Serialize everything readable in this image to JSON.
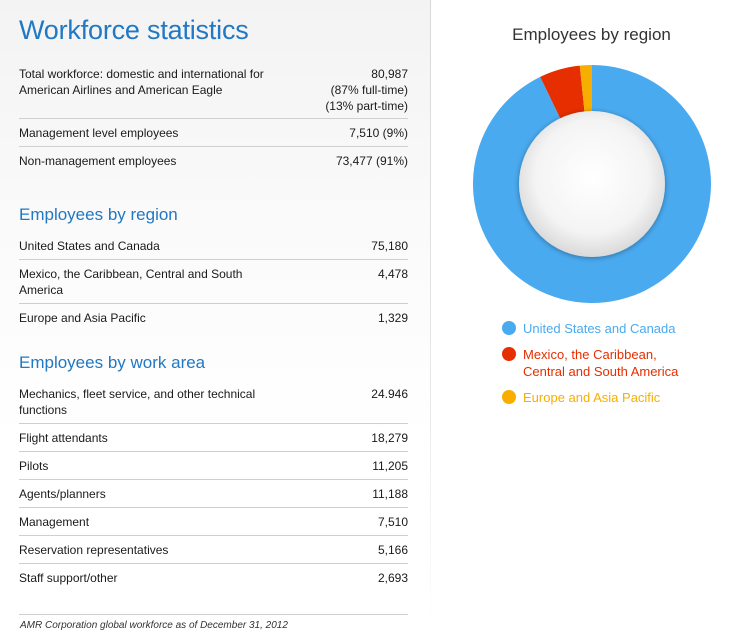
{
  "page": {
    "title": "Workforce statistics",
    "footnote": "AMR Corporation global workforce as of December 31, 2012"
  },
  "totals": [
    {
      "label": "Total workforce: domestic and international for American Airlines and American Eagle",
      "value": "80,987",
      "sub1": "(87% full-time)",
      "sub2": "(13% part-time)"
    },
    {
      "label": "Management level employees",
      "value": "7,510 (9%)"
    },
    {
      "label": "Non-management employees",
      "value": "73,477 (91%)"
    }
  ],
  "region": {
    "title": "Employees by region",
    "rows": [
      {
        "label": "United States and Canada",
        "value": "75,180"
      },
      {
        "label": "Mexico, the Caribbean, Central and South America",
        "value": "4,478"
      },
      {
        "label": "Europe and Asia Pacific",
        "value": "1,329"
      }
    ]
  },
  "work_area": {
    "title": "Employees by work area",
    "rows": [
      {
        "label": "Mechanics, fleet service, and other technical functions",
        "value": "24.946"
      },
      {
        "label": "Flight attendants",
        "value": "18,279"
      },
      {
        "label": "Pilots",
        "value": "11,205"
      },
      {
        "label": "Agents/planners",
        "value": "11,188"
      },
      {
        "label": "Management",
        "value": "7,510"
      },
      {
        "label": "Reservation representatives",
        "value": "5,166"
      },
      {
        "label": "Staff support/other",
        "value": "2,693"
      }
    ]
  },
  "chart_data": {
    "type": "pie",
    "title": "Employees by region",
    "donut": true,
    "legend": "bottom",
    "categories": [
      "United States and Canada",
      "Mexico, the Caribbean, Central and South America",
      "Europe and Asia Pacific"
    ],
    "legend_lines": [
      [
        "United States and Canada"
      ],
      [
        "Mexico, the Caribbean,",
        "Central and South America"
      ],
      [
        "Europe and Asia Pacific"
      ]
    ],
    "values": [
      75180,
      4478,
      1329
    ],
    "colors": [
      "#4aaaf0",
      "#e62e00",
      "#f7ae00"
    ]
  }
}
